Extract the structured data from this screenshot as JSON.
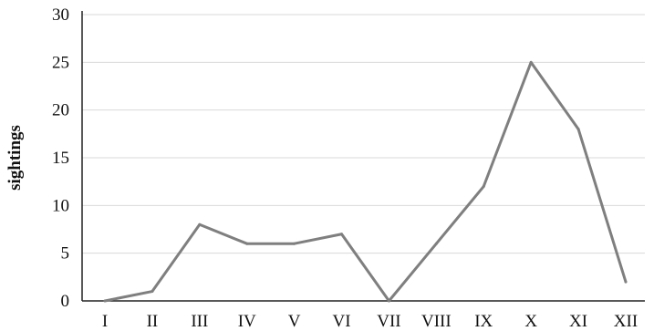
{
  "chart_data": {
    "type": "line",
    "title": "",
    "xlabel": "",
    "ylabel": "sightings",
    "categories": [
      "I",
      "II",
      "III",
      "IV",
      "V",
      "VI",
      "VII",
      "VIII",
      "IX",
      "X",
      "XI",
      "XII"
    ],
    "series": [
      {
        "values": [
          0,
          1,
          8,
          6,
          6,
          7,
          0,
          6,
          12,
          25,
          18,
          2
        ]
      }
    ],
    "ylim": [
      0,
      30
    ],
    "yticks": [
      0,
      5,
      10,
      15,
      20,
      25,
      30
    ],
    "grid": true,
    "legend": "none",
    "colors": {
      "line": "#7f7f7f",
      "grid": "#d9d9d9",
      "axis": "#222222"
    }
  }
}
